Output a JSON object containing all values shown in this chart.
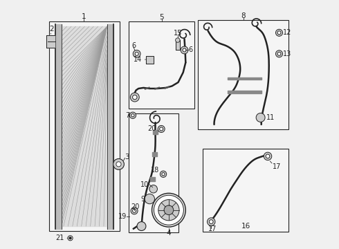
{
  "bg_color": "#f0f0f0",
  "line_color": "#222222",
  "box_bg": "#f5f5f5",
  "fin_color": "#999999",
  "label_fontsize": 7.5,
  "boxes": {
    "condenser": [
      0.01,
      0.06,
      0.3,
      0.88
    ],
    "hose5": [
      0.33,
      0.55,
      0.28,
      0.38
    ],
    "hose_mid": [
      0.33,
      0.06,
      0.22,
      0.47
    ],
    "hose8": [
      0.61,
      0.47,
      0.37,
      0.46
    ],
    "hose16": [
      0.63,
      0.06,
      0.35,
      0.35
    ]
  },
  "labels": {
    "1": [
      0.155,
      0.965,
      "center"
    ],
    "2": [
      0.015,
      0.91,
      "left"
    ],
    "3": [
      0.315,
      0.56,
      "left"
    ],
    "4": [
      0.495,
      0.032,
      "center"
    ],
    "5": [
      0.47,
      0.965,
      "center"
    ],
    "6a": [
      0.355,
      0.82,
      "left"
    ],
    "6b": [
      0.555,
      0.8,
      "left"
    ],
    "7": [
      0.325,
      0.516,
      "left"
    ],
    "8": [
      0.8,
      0.965,
      "center"
    ],
    "9": [
      0.4,
      0.25,
      "left"
    ],
    "10": [
      0.435,
      0.285,
      "left"
    ],
    "11": [
      0.79,
      0.545,
      "left"
    ],
    "12": [
      0.945,
      0.87,
      "left"
    ],
    "13": [
      0.945,
      0.75,
      "left"
    ],
    "14": [
      0.4,
      0.79,
      "left"
    ],
    "15": [
      0.525,
      0.875,
      "center"
    ],
    "16": [
      0.8,
      0.037,
      "center"
    ],
    "17a": [
      0.945,
      0.3,
      "left"
    ],
    "17b": [
      0.66,
      0.062,
      "left"
    ],
    "18": [
      0.455,
      0.335,
      "left"
    ],
    "19": [
      0.305,
      0.122,
      "left"
    ],
    "20a": [
      0.355,
      0.395,
      "left"
    ],
    "20b": [
      0.34,
      0.155,
      "left"
    ],
    "21": [
      0.065,
      0.038,
      "left"
    ]
  }
}
